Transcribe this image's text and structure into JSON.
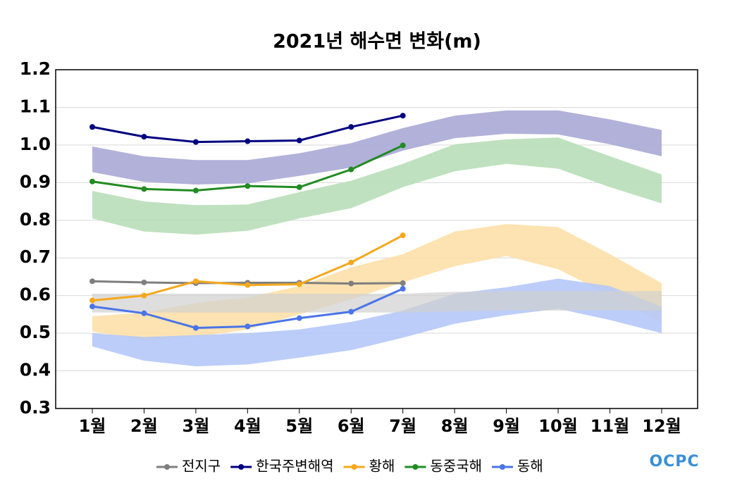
{
  "chart_data": {
    "type": "line",
    "title": "2021년 해수면 변화(m)",
    "logo": "OCPC",
    "categories": [
      "1월",
      "2월",
      "3월",
      "4월",
      "5월",
      "6월",
      "7월",
      "8월",
      "9월",
      "10월",
      "11월",
      "12월"
    ],
    "ylim": [
      0.3,
      1.2
    ],
    "yticks": [
      0.3,
      0.4,
      0.5,
      0.6,
      0.7,
      0.8,
      0.9,
      {
        "value": 1,
        "label": "1.0"
      },
      1.1,
      1.2
    ],
    "grid": true,
    "bands": [
      {
        "color": "#a9a9d6",
        "upper": [
          0.996,
          0.97,
          0.96,
          0.96,
          0.978,
          1.005,
          1.045,
          1.078,
          1.092,
          1.092,
          1.068,
          1.04
        ],
        "lower": [
          0.928,
          0.902,
          0.895,
          0.898,
          0.918,
          0.94,
          0.985,
          1.018,
          1.03,
          1.028,
          1.002,
          0.97
        ]
      },
      {
        "color": "#b8deb8",
        "upper": [
          0.878,
          0.85,
          0.84,
          0.842,
          0.875,
          0.905,
          0.95,
          1.002,
          1.015,
          1.02,
          0.97,
          0.922
        ],
        "lower": [
          0.805,
          0.77,
          0.762,
          0.772,
          0.805,
          0.832,
          0.888,
          0.93,
          0.95,
          0.937,
          0.888,
          0.845
        ]
      },
      {
        "color": "#fde0a8",
        "upper": [
          0.545,
          0.555,
          0.58,
          0.595,
          0.625,
          0.675,
          0.71,
          0.77,
          0.79,
          0.782,
          0.71,
          0.633
        ],
        "lower": [
          0.505,
          0.48,
          0.49,
          0.51,
          0.55,
          0.59,
          0.635,
          0.678,
          0.705,
          0.67,
          0.6,
          0.528
        ]
      },
      {
        "color": "#b5c8f8",
        "upper": [
          0.5,
          0.49,
          0.495,
          0.5,
          0.51,
          0.53,
          0.56,
          0.605,
          0.622,
          0.645,
          0.625,
          0.57
        ],
        "lower": [
          0.465,
          0.427,
          0.412,
          0.417,
          0.435,
          0.455,
          0.488,
          0.525,
          0.548,
          0.565,
          0.535,
          0.5
        ]
      },
      {
        "color": "#d0d0d0",
        "upper": [
          0.605,
          0.605,
          0.605,
          0.605,
          0.605,
          0.605,
          0.605,
          0.61,
          0.612,
          0.612,
          0.612,
          0.612
        ],
        "lower": [
          0.555,
          0.555,
          0.555,
          0.555,
          0.555,
          0.555,
          0.555,
          0.558,
          0.56,
          0.56,
          0.56,
          0.56
        ]
      }
    ],
    "series": [
      {
        "name": "전지구",
        "color": "#7f7f7f",
        "values": [
          0.638,
          0.635,
          0.633,
          0.634,
          0.634,
          0.632,
          0.633,
          null,
          null,
          null,
          null,
          null
        ]
      },
      {
        "name": "한국주변해역",
        "color": "#000080",
        "values": [
          1.048,
          1.022,
          1.008,
          1.01,
          1.012,
          1.048,
          1.078,
          null,
          null,
          null,
          null,
          null
        ]
      },
      {
        "name": "황해",
        "color": "#f5a81c",
        "values": [
          0.587,
          0.6,
          0.638,
          0.628,
          0.63,
          0.688,
          0.76,
          null,
          null,
          null,
          null,
          null
        ]
      },
      {
        "name": "동중국해",
        "color": "#228b22",
        "values": [
          0.903,
          0.883,
          0.879,
          0.891,
          0.888,
          0.935,
          0.999,
          null,
          null,
          null,
          null,
          null
        ]
      },
      {
        "name": "동해",
        "color": "#4a74e8",
        "values": [
          0.571,
          0.553,
          0.514,
          0.518,
          0.54,
          0.557,
          0.618,
          null,
          null,
          null,
          null,
          null
        ]
      }
    ]
  }
}
